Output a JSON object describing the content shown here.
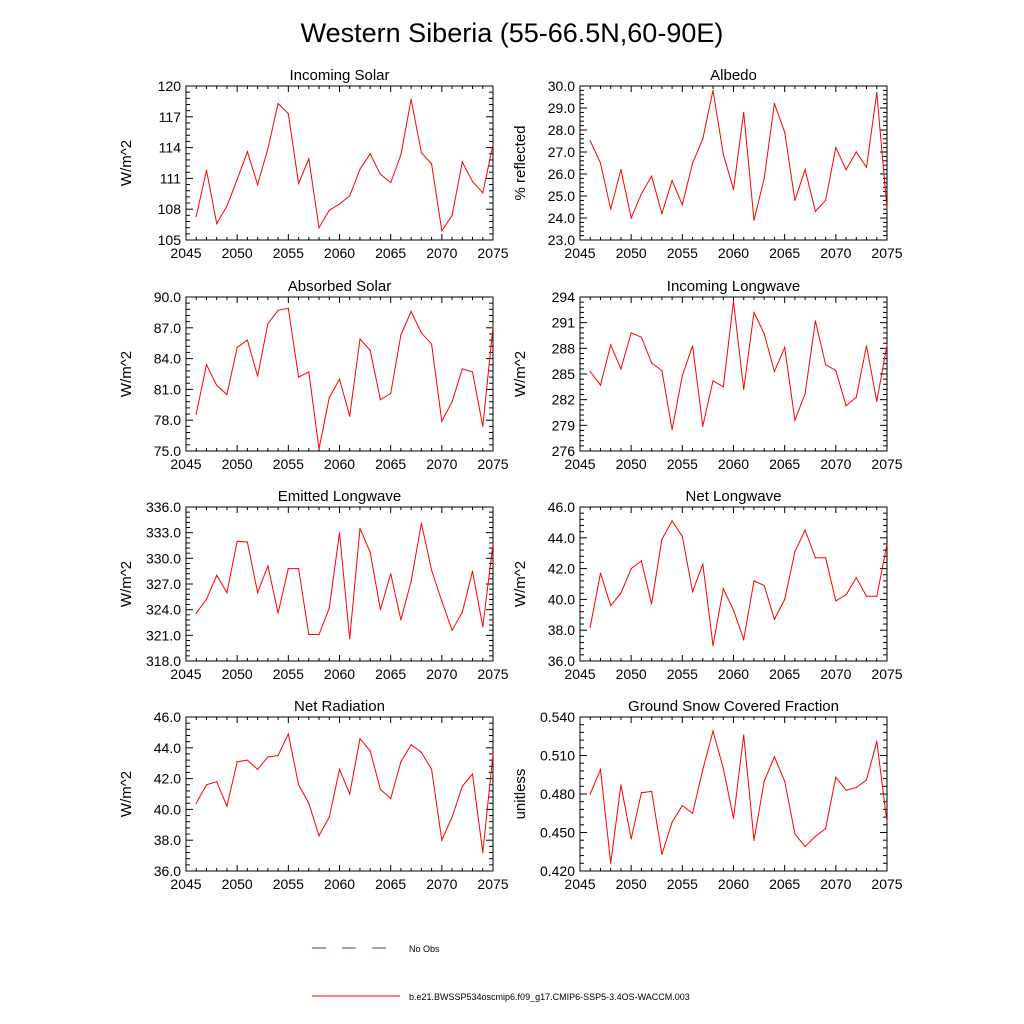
{
  "figure_title": "Western Siberia (55-66.5N,60-90E)",
  "legend": {
    "obs_label": "No Obs",
    "model_label": "b.e21.BWSSP534oscmip6.f09_g17.CMIP6-SSP5-3.4OS-WACCM.003",
    "obs_color": "#3b3bb0",
    "model_color": "#ff0000"
  },
  "chart_data": [
    {
      "type": "line",
      "title": "Incoming Solar",
      "xlabel": "",
      "ylabel": "W/m^2",
      "xlim": [
        2045,
        2075
      ],
      "ylim": [
        105,
        120
      ],
      "xticks": [
        2045,
        2050,
        2055,
        2060,
        2065,
        2070,
        2075
      ],
      "yticks": [
        "105",
        "108",
        "111",
        "114",
        "117",
        "120"
      ],
      "x": [
        2046,
        2047,
        2048,
        2049,
        2050,
        2051,
        2052,
        2053,
        2054,
        2055,
        2056,
        2057,
        2058,
        2059,
        2060,
        2061,
        2062,
        2063,
        2064,
        2065,
        2066,
        2067,
        2068,
        2069,
        2070,
        2071,
        2072,
        2073,
        2074,
        2075
      ],
      "values": [
        107.3,
        111.8,
        106.6,
        108.3,
        110.9,
        113.6,
        110.4,
        113.9,
        118.3,
        117.3,
        110.5,
        112.9,
        106.2,
        107.9,
        108.5,
        109.3,
        111.9,
        113.4,
        111.4,
        110.6,
        113.3,
        118.7,
        113.5,
        112.4,
        105.9,
        107.4,
        112.6,
        110.7,
        109.6,
        114.3
      ],
      "series_color": "#ff0000"
    },
    {
      "type": "line",
      "title": "Albedo",
      "xlabel": "",
      "ylabel": "% reflected",
      "xlim": [
        2045,
        2075
      ],
      "ylim": [
        23.0,
        30.0
      ],
      "xticks": [
        2045,
        2050,
        2055,
        2060,
        2065,
        2070,
        2075
      ],
      "yticks": [
        "23.0",
        "24.0",
        "25.0",
        "26.0",
        "27.0",
        "28.0",
        "29.0",
        "30.0"
      ],
      "x": [
        2046,
        2047,
        2048,
        2049,
        2050,
        2051,
        2052,
        2053,
        2054,
        2055,
        2056,
        2057,
        2058,
        2059,
        2060,
        2061,
        2062,
        2063,
        2064,
        2065,
        2066,
        2067,
        2068,
        2069,
        2070,
        2071,
        2072,
        2073,
        2074,
        2075
      ],
      "values": [
        27.5,
        26.5,
        24.4,
        26.2,
        24.0,
        25.1,
        25.9,
        24.2,
        25.7,
        24.6,
        26.5,
        27.6,
        29.8,
        26.9,
        25.3,
        28.8,
        23.9,
        25.8,
        29.2,
        27.9,
        24.8,
        26.2,
        24.3,
        24.8,
        27.2,
        26.2,
        27.0,
        26.3,
        29.7,
        24.4
      ],
      "series_color": "#ff0000"
    },
    {
      "type": "line",
      "title": "Absorbed Solar",
      "xlabel": "",
      "ylabel": "W/m^2",
      "xlim": [
        2045,
        2075
      ],
      "ylim": [
        75.0,
        90.0
      ],
      "xticks": [
        2045,
        2050,
        2055,
        2060,
        2065,
        2070,
        2075
      ],
      "yticks": [
        "75.0",
        "78.0",
        "81.0",
        "84.0",
        "87.0",
        "90.0"
      ],
      "x": [
        2046,
        2047,
        2048,
        2049,
        2050,
        2051,
        2052,
        2053,
        2054,
        2055,
        2056,
        2057,
        2058,
        2059,
        2060,
        2061,
        2062,
        2063,
        2064,
        2065,
        2066,
        2067,
        2068,
        2069,
        2070,
        2071,
        2072,
        2073,
        2074,
        2075
      ],
      "values": [
        78.6,
        83.4,
        81.4,
        80.5,
        85.1,
        85.8,
        82.3,
        87.4,
        88.7,
        88.9,
        82.2,
        82.7,
        75.2,
        80.2,
        82.0,
        78.4,
        85.9,
        84.8,
        80.0,
        80.6,
        86.3,
        88.6,
        86.5,
        85.4,
        77.9,
        79.8,
        83.0,
        82.7,
        77.4,
        87.1
      ],
      "series_color": "#ff0000"
    },
    {
      "type": "line",
      "title": "Incoming Longwave",
      "xlabel": "",
      "ylabel": "W/m^2",
      "xlim": [
        2045,
        2075
      ],
      "ylim": [
        276,
        294
      ],
      "xticks": [
        2045,
        2050,
        2055,
        2060,
        2065,
        2070,
        2075
      ],
      "yticks": [
        "276",
        "279",
        "282",
        "285",
        "288",
        "291",
        "294"
      ],
      "x": [
        2046,
        2047,
        2048,
        2049,
        2050,
        2051,
        2052,
        2053,
        2054,
        2055,
        2056,
        2057,
        2058,
        2059,
        2060,
        2061,
        2062,
        2063,
        2064,
        2065,
        2066,
        2067,
        2068,
        2069,
        2070,
        2071,
        2072,
        2073,
        2074,
        2075
      ],
      "values": [
        285.3,
        283.7,
        288.4,
        285.6,
        289.8,
        289.3,
        286.3,
        285.4,
        278.5,
        284.8,
        288.3,
        278.9,
        284.2,
        283.5,
        293.5,
        283.2,
        292.2,
        289.7,
        285.3,
        288.1,
        279.6,
        282.7,
        291.2,
        286.1,
        285.4,
        281.3,
        282.3,
        288.3,
        281.8,
        288.4
      ],
      "series_color": "#ff0000"
    },
    {
      "type": "line",
      "title": "Emitted Longwave",
      "xlabel": "",
      "ylabel": "W/m^2",
      "xlim": [
        2045,
        2075
      ],
      "ylim": [
        318.0,
        336.0
      ],
      "xticks": [
        2045,
        2050,
        2055,
        2060,
        2065,
        2070,
        2075
      ],
      "yticks": [
        "318.0",
        "321.0",
        "324.0",
        "327.0",
        "330.0",
        "333.0",
        "336.0"
      ],
      "x": [
        2046,
        2047,
        2048,
        2049,
        2050,
        2051,
        2052,
        2053,
        2054,
        2055,
        2056,
        2057,
        2058,
        2059,
        2060,
        2061,
        2062,
        2063,
        2064,
        2065,
        2066,
        2067,
        2068,
        2069,
        2070,
        2071,
        2072,
        2073,
        2074,
        2075
      ],
      "values": [
        323.6,
        325.2,
        328.0,
        326.0,
        332.0,
        331.9,
        326.0,
        329.1,
        323.6,
        328.8,
        328.8,
        321.1,
        321.1,
        324.2,
        333.0,
        320.6,
        333.5,
        330.7,
        324.0,
        328.2,
        322.8,
        327.3,
        334.1,
        328.6,
        325.0,
        321.6,
        323.7,
        328.5,
        322.0,
        331.7
      ],
      "series_color": "#ff0000"
    },
    {
      "type": "line",
      "title": "Net Longwave",
      "xlabel": "",
      "ylabel": "W/m^2",
      "xlim": [
        2045,
        2075
      ],
      "ylim": [
        36.0,
        46.0
      ],
      "xticks": [
        2045,
        2050,
        2055,
        2060,
        2065,
        2070,
        2075
      ],
      "yticks": [
        "36.0",
        "38.0",
        "40.0",
        "42.0",
        "44.0",
        "46.0"
      ],
      "x": [
        2046,
        2047,
        2048,
        2049,
        2050,
        2051,
        2052,
        2053,
        2054,
        2055,
        2056,
        2057,
        2058,
        2059,
        2060,
        2061,
        2062,
        2063,
        2064,
        2065,
        2066,
        2067,
        2068,
        2069,
        2070,
        2071,
        2072,
        2073,
        2074,
        2075
      ],
      "values": [
        38.2,
        41.7,
        39.6,
        40.4,
        42.0,
        42.5,
        39.7,
        43.9,
        45.1,
        44.1,
        40.5,
        42.3,
        37.0,
        40.7,
        39.3,
        37.4,
        41.2,
        40.9,
        38.7,
        40.0,
        43.1,
        44.5,
        42.7,
        42.7,
        39.9,
        40.3,
        41.4,
        40.2,
        40.2,
        43.6
      ],
      "series_color": "#ff0000"
    },
    {
      "type": "line",
      "title": "Net Radiation",
      "xlabel": "",
      "ylabel": "W/m^2",
      "xlim": [
        2045,
        2075
      ],
      "ylim": [
        36.0,
        46.0
      ],
      "xticks": [
        2045,
        2050,
        2055,
        2060,
        2065,
        2070,
        2075
      ],
      "yticks": [
        "36.0",
        "38.0",
        "40.0",
        "42.0",
        "44.0",
        "46.0"
      ],
      "x": [
        2046,
        2047,
        2048,
        2049,
        2050,
        2051,
        2052,
        2053,
        2054,
        2055,
        2056,
        2057,
        2058,
        2059,
        2060,
        2061,
        2062,
        2063,
        2064,
        2065,
        2066,
        2067,
        2068,
        2069,
        2070,
        2071,
        2072,
        2073,
        2074,
        2075
      ],
      "values": [
        40.4,
        41.6,
        41.8,
        40.2,
        43.1,
        43.2,
        42.6,
        43.4,
        43.5,
        44.9,
        41.6,
        40.4,
        38.3,
        39.5,
        42.6,
        41.0,
        44.6,
        43.8,
        41.3,
        40.7,
        43.1,
        44.2,
        43.7,
        42.6,
        38.0,
        39.5,
        41.5,
        42.3,
        37.2,
        43.6
      ],
      "series_color": "#ff0000"
    },
    {
      "type": "line",
      "title": "Ground Snow Covered Fraction",
      "xlabel": "",
      "ylabel": "unitless",
      "xlim": [
        2045,
        2075
      ],
      "ylim": [
        0.42,
        0.54
      ],
      "xticks": [
        2045,
        2050,
        2055,
        2060,
        2065,
        2070,
        2075
      ],
      "yticks": [
        "0.420",
        "0.450",
        "0.480",
        "0.510",
        "0.540"
      ],
      "x": [
        2046,
        2047,
        2048,
        2049,
        2050,
        2051,
        2052,
        2053,
        2054,
        2055,
        2056,
        2057,
        2058,
        2059,
        2060,
        2061,
        2062,
        2063,
        2064,
        2065,
        2066,
        2067,
        2068,
        2069,
        2070,
        2071,
        2072,
        2073,
        2074,
        2075
      ],
      "values": [
        0.48,
        0.499,
        0.426,
        0.487,
        0.445,
        0.481,
        0.482,
        0.433,
        0.458,
        0.471,
        0.465,
        0.499,
        0.529,
        0.5,
        0.461,
        0.526,
        0.444,
        0.49,
        0.509,
        0.49,
        0.449,
        0.439,
        0.447,
        0.453,
        0.493,
        0.483,
        0.485,
        0.491,
        0.521,
        0.458
      ],
      "series_color": "#ff0000"
    }
  ]
}
